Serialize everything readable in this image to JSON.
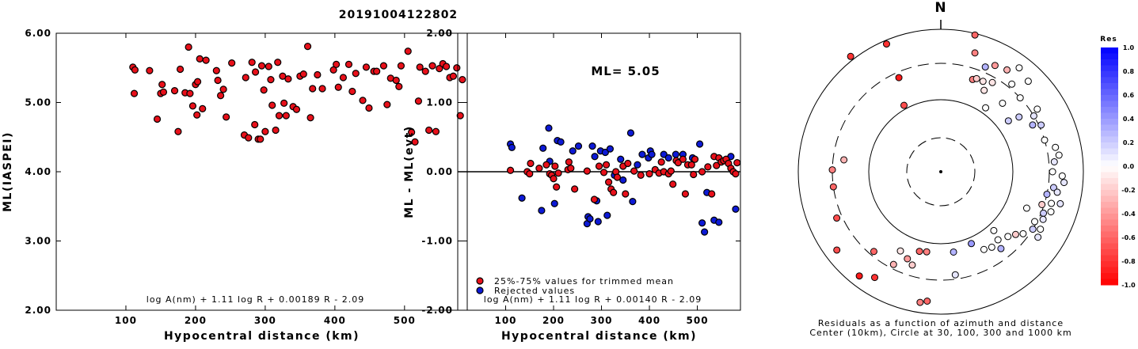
{
  "title": "20191004122802",
  "chart_data": [
    {
      "type": "scatter",
      "ylabel": "ML(IASPEI)",
      "xlabel": "Hypocentral distance (km)",
      "xlim": [
        0,
        590
      ],
      "ylim": [
        2.0,
        6.0
      ],
      "x_ticks": [
        "100",
        "200",
        "300",
        "400",
        "500"
      ],
      "y_ticks": [
        "2.00",
        "3.00",
        "4.00",
        "5.00",
        "6.00"
      ],
      "formula": "log A(nm) + 1.11 log R + 0.00189 R - 2.09",
      "color": "#e8101a",
      "points": [
        [
          110,
          5.51
        ],
        [
          113,
          5.47
        ],
        [
          112,
          5.13
        ],
        [
          134,
          5.46
        ],
        [
          145,
          4.76
        ],
        [
          150,
          5.13
        ],
        [
          152,
          5.26
        ],
        [
          154,
          5.15
        ],
        [
          170,
          5.17
        ],
        [
          175,
          4.58
        ],
        [
          178,
          5.48
        ],
        [
          185,
          5.14
        ],
        [
          190,
          5.8
        ],
        [
          192,
          5.13
        ],
        [
          196,
          4.95
        ],
        [
          200,
          5.26
        ],
        [
          202,
          4.82
        ],
        [
          203,
          5.3
        ],
        [
          206,
          5.63
        ],
        [
          210,
          4.91
        ],
        [
          215,
          5.61
        ],
        [
          230,
          5.46
        ],
        [
          232,
          5.32
        ],
        [
          236,
          5.1
        ],
        [
          240,
          5.19
        ],
        [
          244,
          4.79
        ],
        [
          252,
          5.57
        ],
        [
          270,
          4.53
        ],
        [
          272,
          5.36
        ],
        [
          276,
          4.49
        ],
        [
          281,
          5.58
        ],
        [
          285,
          4.68
        ],
        [
          286,
          5.44
        ],
        [
          290,
          4.47
        ],
        [
          293,
          4.47
        ],
        [
          295,
          5.53
        ],
        [
          298,
          5.18
        ],
        [
          300,
          4.58
        ],
        [
          305,
          5.52
        ],
        [
          308,
          5.33
        ],
        [
          310,
          4.96
        ],
        [
          315,
          4.6
        ],
        [
          318,
          5.58
        ],
        [
          320,
          4.81
        ],
        [
          325,
          5.38
        ],
        [
          327,
          4.99
        ],
        [
          330,
          4.81
        ],
        [
          333,
          5.34
        ],
        [
          340,
          4.94
        ],
        [
          345,
          4.9
        ],
        [
          350,
          5.38
        ],
        [
          355,
          5.41
        ],
        [
          361,
          5.81
        ],
        [
          365,
          4.78
        ],
        [
          368,
          5.2
        ],
        [
          375,
          5.4
        ],
        [
          382,
          5.2
        ],
        [
          398,
          5.47
        ],
        [
          402,
          5.55
        ],
        [
          405,
          5.22
        ],
        [
          412,
          5.36
        ],
        [
          420,
          5.55
        ],
        [
          425,
          5.16
        ],
        [
          430,
          5.42
        ],
        [
          440,
          5.03
        ],
        [
          445,
          5.51
        ],
        [
          449,
          4.92
        ],
        [
          456,
          5.45
        ],
        [
          460,
          5.45
        ],
        [
          470,
          5.53
        ],
        [
          475,
          4.97
        ],
        [
          480,
          5.35
        ],
        [
          488,
          5.32
        ],
        [
          492,
          5.23
        ],
        [
          495,
          5.53
        ],
        [
          505,
          5.74
        ],
        [
          510,
          4.57
        ],
        [
          515,
          4.43
        ],
        [
          520,
          5.02
        ],
        [
          522,
          5.51
        ],
        [
          530,
          5.45
        ],
        [
          535,
          4.6
        ],
        [
          540,
          5.53
        ],
        [
          545,
          4.58
        ],
        [
          550,
          5.49
        ],
        [
          555,
          5.56
        ],
        [
          560,
          5.52
        ],
        [
          565,
          5.36
        ],
        [
          570,
          5.38
        ],
        [
          575,
          5.5
        ],
        [
          580,
          4.81
        ],
        [
          583,
          5.33
        ]
      ]
    },
    {
      "type": "scatter",
      "ylabel": "ML - ML(evt)",
      "xlabel": "Hypocentral distance (km)",
      "xlim": [
        0,
        590
      ],
      "ylim": [
        -2.0,
        2.0
      ],
      "x_ticks": [
        "100",
        "200",
        "300",
        "400",
        "500"
      ],
      "y_ticks": [
        "-2.00",
        "-1.00",
        "0.00",
        "1.00",
        "2.00"
      ],
      "annotation": "ML= 5.05",
      "formula": "log A(nm) + 1.11 log R + 0.00140 R - 2.09",
      "legend": [
        "25%-75% values for trimmed mean",
        "Rejected values"
      ],
      "series": [
        {
          "name": "25%-75% values for trimmed mean",
          "color": "#e8101a",
          "points": [
            [
              110,
              0.02
            ],
            [
              145,
              0.0
            ],
            [
              150,
              -0.03
            ],
            [
              152,
              0.12
            ],
            [
              170,
              0.05
            ],
            [
              185,
              0.1
            ],
            [
              192,
              -0.03
            ],
            [
              196,
              -0.05
            ],
            [
              200,
              -0.1
            ],
            [
              203,
              0.08
            ],
            [
              206,
              -0.22
            ],
            [
              210,
              -0.02
            ],
            [
              230,
              0.03
            ],
            [
              232,
              0.14
            ],
            [
              236,
              0.05
            ],
            [
              244,
              -0.25
            ],
            [
              270,
              0.01
            ],
            [
              285,
              -0.4
            ],
            [
              295,
              0.08
            ],
            [
              305,
              -0.01
            ],
            [
              310,
              0.1
            ],
            [
              315,
              -0.15
            ],
            [
              320,
              -0.25
            ],
            [
              325,
              -0.3
            ],
            [
              330,
              0.0
            ],
            [
              333,
              -0.08
            ],
            [
              345,
              0.08
            ],
            [
              350,
              -0.32
            ],
            [
              355,
              0.12
            ],
            [
              368,
              0.01
            ],
            [
              382,
              -0.05
            ],
            [
              400,
              -0.03
            ],
            [
              412,
              0.03
            ],
            [
              420,
              -0.02
            ],
            [
              425,
              0.14
            ],
            [
              430,
              0.0
            ],
            [
              440,
              -0.03
            ],
            [
              445,
              0.01
            ],
            [
              449,
              -0.18
            ],
            [
              456,
              0.16
            ],
            [
              460,
              0.13
            ],
            [
              470,
              0.18
            ],
            [
              475,
              -0.32
            ],
            [
              480,
              0.1
            ],
            [
              488,
              0.1
            ],
            [
              492,
              -0.04
            ],
            [
              495,
              0.18
            ],
            [
              510,
              0.0
            ],
            [
              522,
              0.07
            ],
            [
              530,
              -0.32
            ],
            [
              535,
              0.22
            ],
            [
              540,
              0.09
            ],
            [
              545,
              0.2
            ],
            [
              550,
              0.14
            ],
            [
              555,
              0.16
            ],
            [
              560,
              0.18
            ],
            [
              565,
              0.12
            ],
            [
              570,
              0.05
            ],
            [
              575,
              0.0
            ],
            [
              580,
              -0.03
            ],
            [
              583,
              0.13
            ]
          ]
        },
        {
          "name": "Rejected values",
          "color": "#0d1ad6",
          "points": [
            [
              110,
              0.4
            ],
            [
              113,
              0.35
            ],
            [
              134,
              -0.38
            ],
            [
              175,
              -0.56
            ],
            [
              178,
              0.34
            ],
            [
              190,
              0.63
            ],
            [
              192,
              0.15
            ],
            [
              202,
              -0.46
            ],
            [
              208,
              0.45
            ],
            [
              215,
              0.43
            ],
            [
              240,
              0.3
            ],
            [
              252,
              0.37
            ],
            [
              270,
              -0.75
            ],
            [
              272,
              -0.65
            ],
            [
              276,
              -0.68
            ],
            [
              281,
              0.37
            ],
            [
              286,
              0.22
            ],
            [
              290,
              -0.42
            ],
            [
              293,
              -0.72
            ],
            [
              298,
              0.3
            ],
            [
              308,
              0.28
            ],
            [
              312,
              -0.63
            ],
            [
              318,
              0.33
            ],
            [
              327,
              -0.05
            ],
            [
              340,
              0.18
            ],
            [
              345,
              -0.12
            ],
            [
              361,
              0.56
            ],
            [
              365,
              -0.43
            ],
            [
              375,
              0.1
            ],
            [
              385,
              0.25
            ],
            [
              398,
              0.2
            ],
            [
              402,
              0.3
            ],
            [
              405,
              0.25
            ],
            [
              430,
              0.25
            ],
            [
              440,
              0.2
            ],
            [
              455,
              0.25
            ],
            [
              470,
              0.25
            ],
            [
              490,
              0.2
            ],
            [
              505,
              0.4
            ],
            [
              510,
              -0.74
            ],
            [
              515,
              -0.87
            ],
            [
              520,
              -0.3
            ],
            [
              535,
              -0.7
            ],
            [
              545,
              -0.73
            ],
            [
              570,
              0.22
            ],
            [
              580,
              -0.54
            ]
          ]
        }
      ]
    },
    {
      "type": "polar-scatter",
      "north_label": "N",
      "caption_1": "Residuals as a function of azimuth and distance",
      "caption_2": "Center (10km), Circle at 30, 100, 300 and 1000 km",
      "colorbar_title": "Res",
      "colorbar_ticks": [
        "1.0",
        "0.8",
        "0.6",
        "0.4",
        "0.2",
        "0.0",
        "-0.2",
        "-0.4",
        "-0.6",
        "-0.8",
        "-1.0"
      ],
      "color_scale": {
        "positive": "#0000ff",
        "zero": "#ffffff",
        "negative": "#ff0000"
      },
      "points": [
        [
          -29,
          0.7,
          -0.7
        ],
        [
          -24,
          0.95,
          -0.9
        ],
        [
          -23,
          1.28,
          -0.8
        ],
        [
          -38,
          1.35,
          -0.8
        ],
        [
          14,
          1.3,
          -0.6
        ],
        [
          16,
          1.14,
          -0.5
        ],
        [
          19,
          0.9,
          -0.5
        ],
        [
          21,
          0.92,
          -0.2
        ],
        [
          23,
          1.05,
          0.3
        ],
        [
          25,
          0.92,
          -0.1
        ],
        [
          28,
          0.85,
          -0.1
        ],
        [
          27,
          1.1,
          -0.4
        ],
        [
          30,
          0.95,
          -0.1
        ],
        [
          33,
          1.12,
          -0.3
        ],
        [
          35,
          0.72,
          0.0
        ],
        [
          37,
          1.2,
          0.0
        ],
        [
          39,
          1.04,
          0.0
        ],
        [
          42,
          0.85,
          0.0
        ],
        [
          44,
          1.16,
          0.0
        ],
        [
          47,
          1.0,
          0.0
        ],
        [
          53,
          0.78,
          0.2
        ],
        [
          55,
          0.88,
          0.2
        ],
        [
          57,
          1.06,
          0.0
        ],
        [
          59,
          1.0,
          0.1
        ],
        [
          63,
          0.95,
          0.3
        ],
        [
          65,
          1.02,
          0.2
        ],
        [
          73,
          1.0,
          0.0
        ],
        [
          78,
          1.08,
          0.0
        ],
        [
          82,
          1.1,
          0.0
        ],
        [
          85,
          1.05,
          0.1
        ],
        [
          90,
          1.03,
          0.0
        ],
        [
          92,
          1.12,
          0.0
        ],
        [
          95,
          1.14,
          0.1
        ],
        [
          98,
          1.05,
          0.2
        ],
        [
          100,
          1.09,
          0.1
        ],
        [
          102,
          1.0,
          0.3
        ],
        [
          105,
          1.14,
          0.1
        ],
        [
          106,
          1.06,
          0.0
        ],
        [
          108,
          0.98,
          -0.2
        ],
        [
          110,
          1.08,
          0.0
        ],
        [
          112,
          1.02,
          0.2
        ],
        [
          113,
          0.86,
          0.0
        ],
        [
          115,
          1.04,
          0.1
        ],
        [
          118,
          0.98,
          0.0
        ],
        [
          120,
          1.06,
          0.0
        ],
        [
          122,
          1.0,
          0.2
        ],
        [
          124,
          1.08,
          0.1
        ],
        [
          127,
          0.95,
          0.0
        ],
        [
          130,
          0.9,
          -0.2
        ],
        [
          134,
          0.86,
          0.0
        ],
        [
          138,
          0.73,
          0.0
        ],
        [
          140,
          0.82,
          0.0
        ],
        [
          142,
          0.9,
          0.3
        ],
        [
          146,
          0.84,
          0.0
        ],
        [
          151,
          0.82,
          0.0
        ],
        [
          157,
          0.72,
          0.4
        ],
        [
          171,
          0.75,
          0.3
        ],
        [
          172,
          0.96,
          0.1
        ],
        [
          195,
          0.76,
          -0.6
        ],
        [
          201,
          0.86,
          -0.4
        ],
        [
          207,
          0.96,
          -0.3
        ],
        [
          212,
          1.15,
          -0.8
        ],
        [
          218,
          1.22,
          -0.9
        ],
        [
          233,
          1.2,
          -0.7
        ],
        [
          246,
          1.05,
          -0.7
        ],
        [
          262,
          1.0,
          -0.6
        ],
        [
          271,
          1.0,
          -0.5
        ],
        [
          277,
          0.9,
          -0.3
        ],
        [
          190,
          0.75,
          -0.5
        ],
        [
          197,
          0.9,
          -0.2
        ],
        [
          186,
          1.2,
          -0.6
        ],
        [
          189,
          1.22,
          -0.5
        ],
        [
          207,
          0.82,
          -0.1
        ],
        [
          220,
          0.96,
          -0.6
        ]
      ]
    }
  ]
}
